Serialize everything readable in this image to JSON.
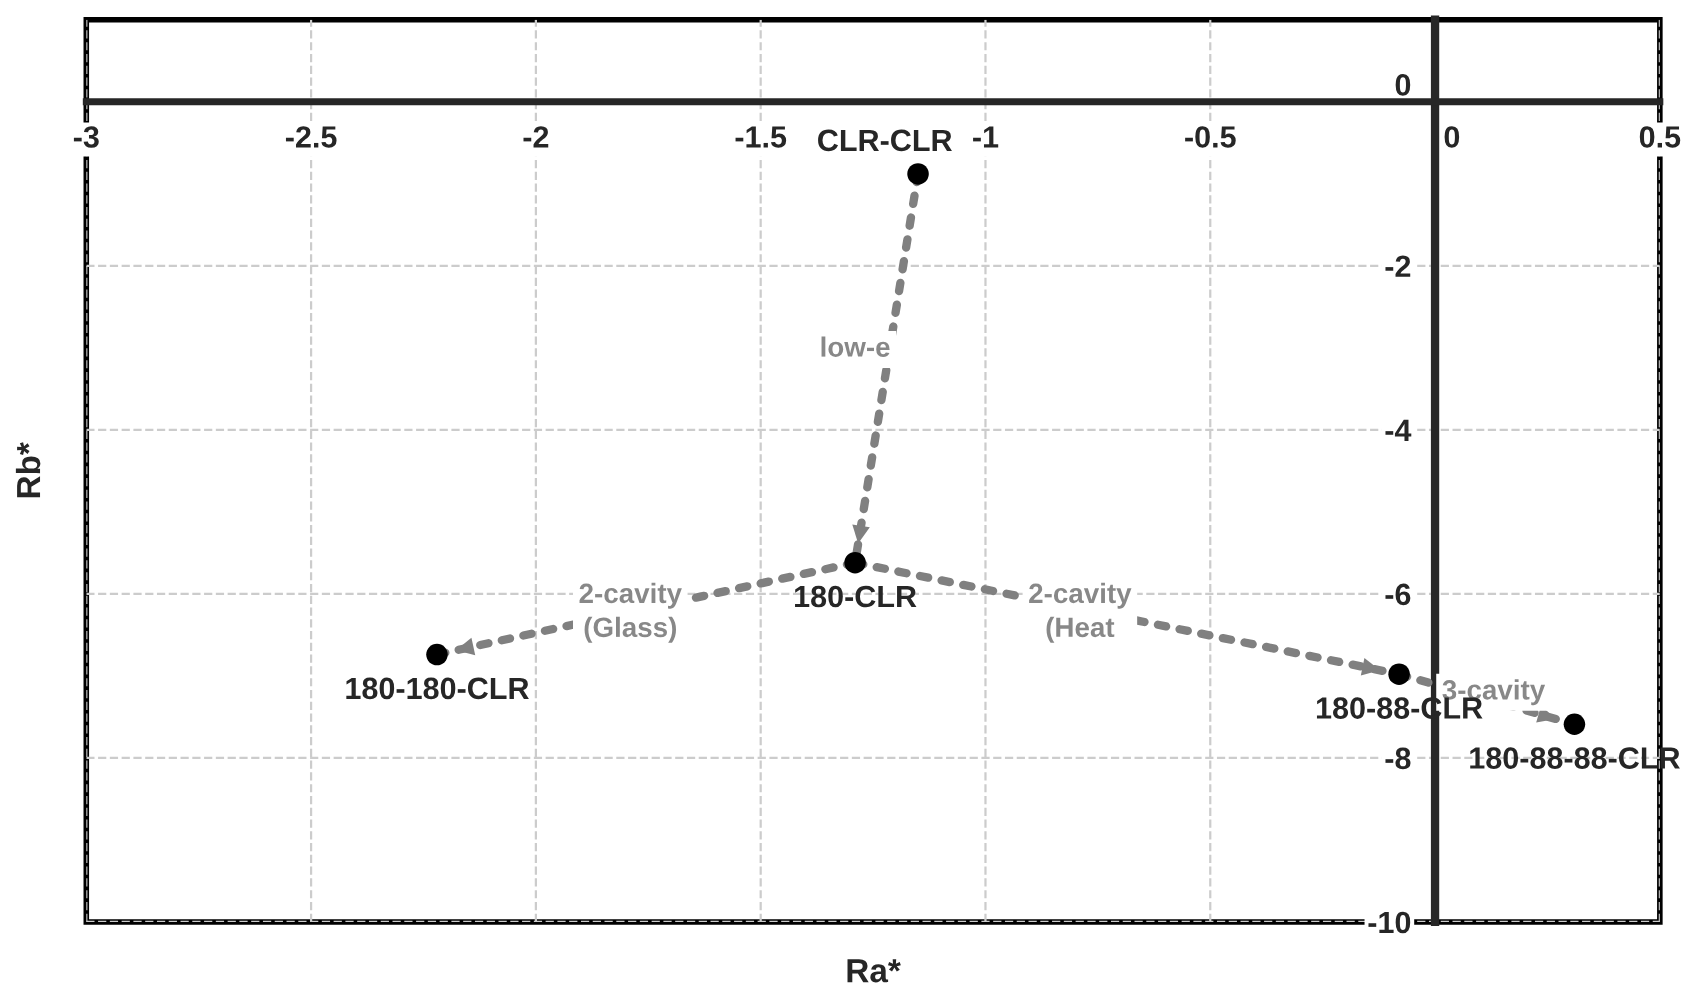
{
  "chart_data": {
    "type": "scatter",
    "xlabel": "Ra*",
    "ylabel": "Rb*",
    "xlim": [
      -3,
      0.5
    ],
    "ylim": [
      -10,
      1
    ],
    "xticks": [
      -3,
      -2.5,
      -2,
      -1.5,
      -1,
      -0.5,
      0,
      0.5
    ],
    "yticks": [
      -10,
      -8,
      -6,
      -4,
      -2,
      0
    ],
    "grid": true,
    "series": [
      {
        "marker": "circle",
        "color": "#000000",
        "x": [
          -1.15,
          -1.29,
          -2.22,
          -0.08,
          0.31
        ],
        "values": [
          -0.88,
          -5.62,
          -6.74,
          -6.98,
          -7.59
        ]
      },
      {
        "type": "line",
        "color": "#808080",
        "line_style": "dotted",
        "x": [
          -1.15,
          -1.29
        ],
        "values": [
          -0.88,
          -5.62
        ]
      },
      {
        "type": "line",
        "color": "#808080",
        "line_style": "dotted",
        "x": [
          -1.29,
          -2.22
        ],
        "values": [
          -5.62,
          -6.74
        ]
      },
      {
        "type": "line",
        "color": "#808080",
        "line_style": "dotted",
        "x": [
          -1.29,
          -0.08
        ],
        "values": [
          -5.62,
          -6.98
        ]
      },
      {
        "type": "line",
        "color": "#808080",
        "line_style": "dotted",
        "x": [
          -0.08,
          0.31
        ],
        "values": [
          -6.98,
          -7.59
        ]
      }
    ],
    "annotations": [
      {
        "text": "CLR-CLR",
        "x": -1.15,
        "y": -0.88
      },
      {
        "text": "180-CLR",
        "x": -1.29,
        "y": -5.62
      },
      {
        "text": "180-180-CLR",
        "x": -2.22,
        "y": -6.74
      },
      {
        "text": "180-88-CLR",
        "x": -0.08,
        "y": -6.98
      },
      {
        "text": "180-88-88-CLR",
        "x": 0.31,
        "y": -7.59
      },
      {
        "text": "low-e",
        "x": -1.29,
        "y": -3.02
      },
      {
        "text": "2-cavity\n(Glass)",
        "x": -1.79,
        "y": -6.23
      },
      {
        "text": "2-cavity\n(Heat",
        "x": -0.79,
        "y": -6.23
      },
      {
        "text": "3-cavity",
        "x": 0.13,
        "y": -7.2
      }
    ]
  }
}
